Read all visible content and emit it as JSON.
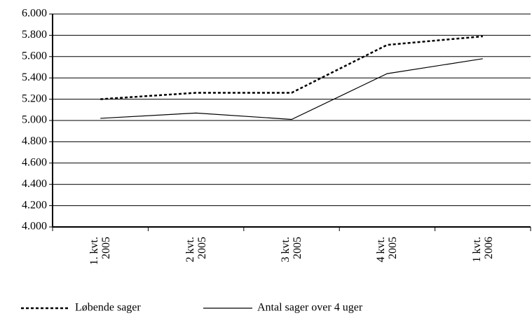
{
  "chart_data": {
    "type": "line",
    "categories": [
      "1. kvt. 2005",
      "2 kvt. 2005",
      "3 kvt. 2005",
      "4 kvt. 2005",
      "1 kvt. 2006"
    ],
    "series": [
      {
        "name": "Løbende sager",
        "color": "#000000",
        "dash": "dotted",
        "values": [
          5200,
          5260,
          5260,
          5710,
          5790
        ]
      },
      {
        "name": "Antal sager over 4 uger",
        "color": "#000000",
        "dash": "solid",
        "values": [
          5020,
          5070,
          5010,
          5440,
          5580
        ]
      }
    ],
    "ylim": [
      4000,
      6000
    ],
    "yticks": [
      {
        "value": 4000,
        "label": "4.000"
      },
      {
        "value": 4200,
        "label": "4.200"
      },
      {
        "value": 4400,
        "label": "4.400"
      },
      {
        "value": 4600,
        "label": "4.600"
      },
      {
        "value": 4800,
        "label": "4.800"
      },
      {
        "value": 5000,
        "label": "5.000"
      },
      {
        "value": 5200,
        "label": "5.200"
      },
      {
        "value": 5400,
        "label": "5.400"
      },
      {
        "value": 5600,
        "label": "5.600"
      },
      {
        "value": 5800,
        "label": "5.800"
      },
      {
        "value": 6000,
        "label": "6.000"
      }
    ],
    "grid": true,
    "legend": "bottom"
  }
}
